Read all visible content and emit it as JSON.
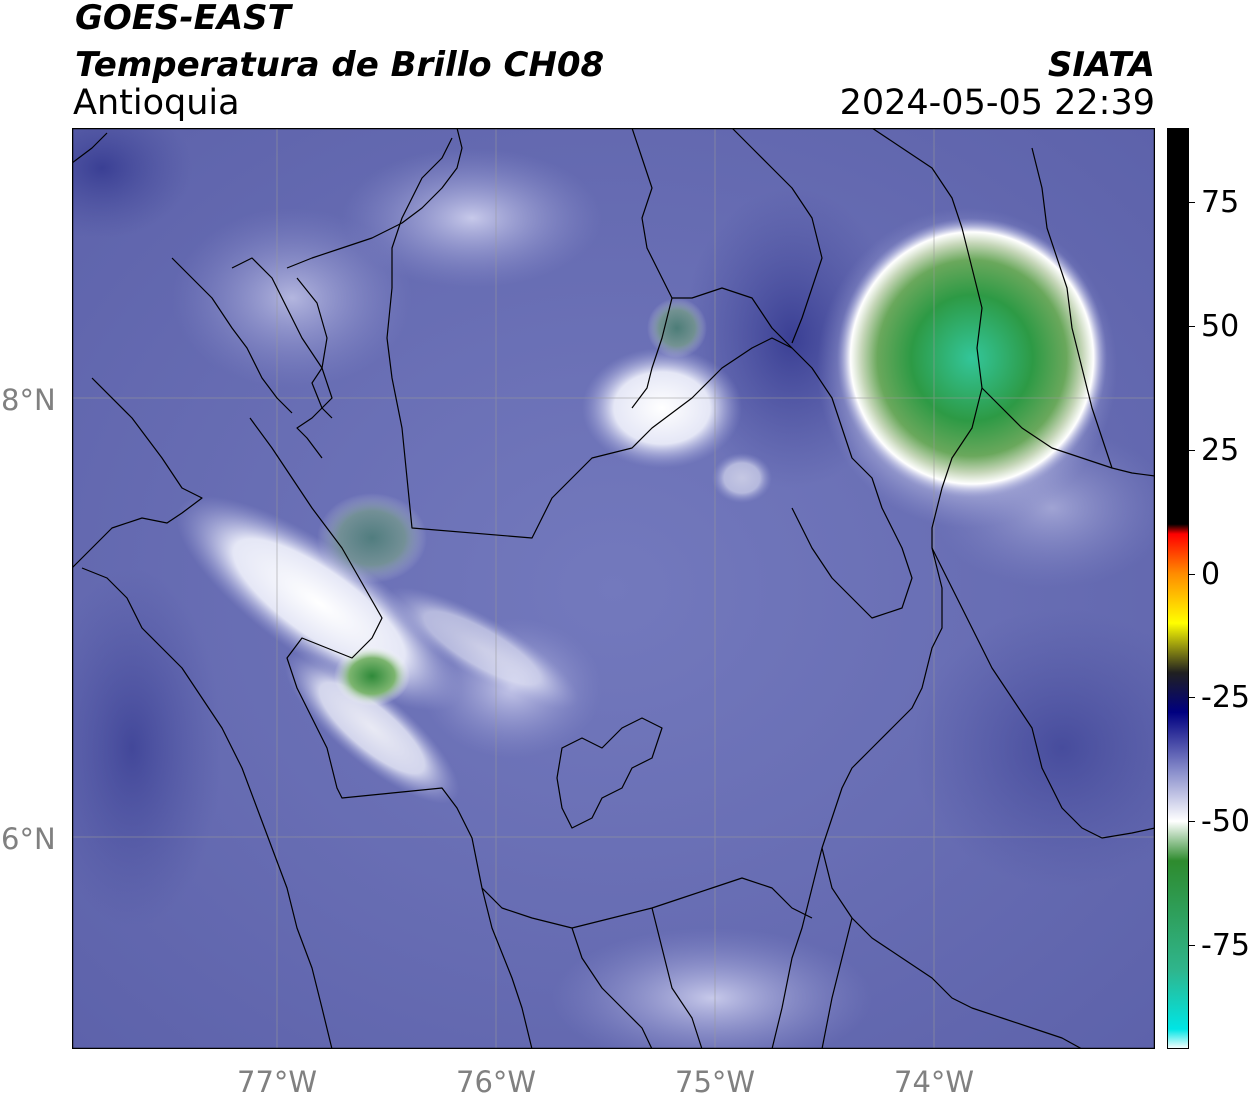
{
  "header": {
    "satellite": "GOES-EAST",
    "product": "Temperatura de Brillo CH08",
    "region": "Antioquia",
    "agency": "SIATA",
    "timestamp": "2024-05-05 22:39"
  },
  "axes": {
    "longitude_labels": [
      "77°W",
      "76°W",
      "75°W",
      "74°W"
    ],
    "latitude_labels": [
      "8°N",
      "6°N"
    ]
  },
  "colorbar": {
    "ticks": [
      "75",
      "50",
      "25",
      "0",
      "-25",
      "-50",
      "-75"
    ],
    "stops": [
      {
        "value": 90,
        "color": "#000000"
      },
      {
        "value": 10,
        "color": "#000000"
      },
      {
        "value": 8,
        "color": "#ff0000"
      },
      {
        "value": 0,
        "color": "#ff8c00"
      },
      {
        "value": -10,
        "color": "#ffff00"
      },
      {
        "value": -20,
        "color": "#202020"
      },
      {
        "value": -28,
        "color": "#000080"
      },
      {
        "value": -40,
        "color": "#8a8fcc"
      },
      {
        "value": -50,
        "color": "#ffffff"
      },
      {
        "value": -58,
        "color": "#2e8b2e"
      },
      {
        "value": -80,
        "color": "#2fb58c"
      },
      {
        "value": -92,
        "color": "#00e5e5"
      },
      {
        "value": -96,
        "color": "#ffffff"
      }
    ]
  },
  "colors": {
    "background_cloud": "#6a70b4",
    "cold_cloud": "#2f9a4a",
    "accent_text": "#000000",
    "axis_label": "#808080"
  }
}
